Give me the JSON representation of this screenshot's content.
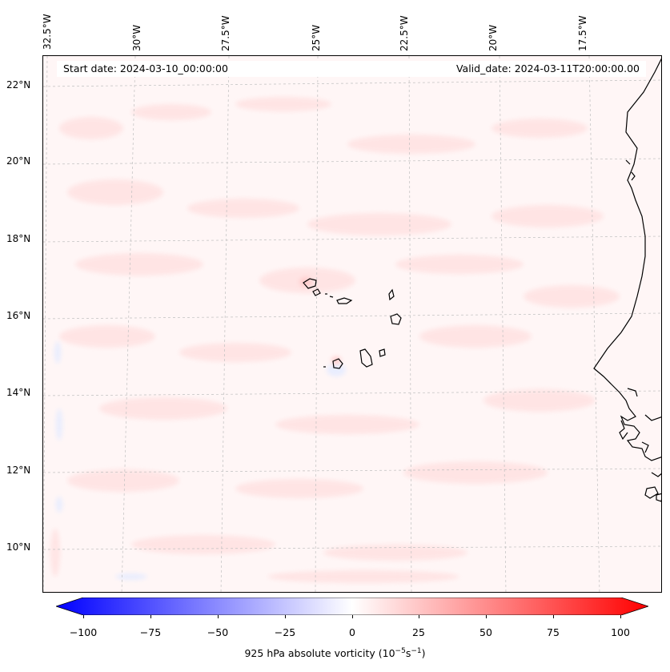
{
  "map": {
    "start_date": "Start date: 2024-03-10_00:00:00",
    "valid_date": "Valid_date: 2024-03-11T20:00:00.00",
    "lon_labels": [
      "32.5°W",
      "30°W",
      "27.5°W",
      "25°W",
      "22.5°W",
      "20°W",
      "17.5°W"
    ],
    "lat_labels": [
      "22°N",
      "20°N",
      "18°N",
      "16°N",
      "14°N",
      "12°N",
      "10°N"
    ],
    "colors": {
      "negative_max": "#0000ff",
      "positive_max": "#ff0000",
      "background_field": "#fff5f5",
      "coastline": "#000000"
    }
  },
  "colorbar": {
    "ticks": [
      "−100",
      "−75",
      "−50",
      "−25",
      "0",
      "25",
      "50",
      "75",
      "100"
    ],
    "label_prefix": "925 hPa absolute vorticity (10",
    "label_exp1": "−5",
    "label_mid": "s",
    "label_exp2": "−1",
    "label_suffix": ")",
    "range": [
      -100,
      100
    ]
  }
}
